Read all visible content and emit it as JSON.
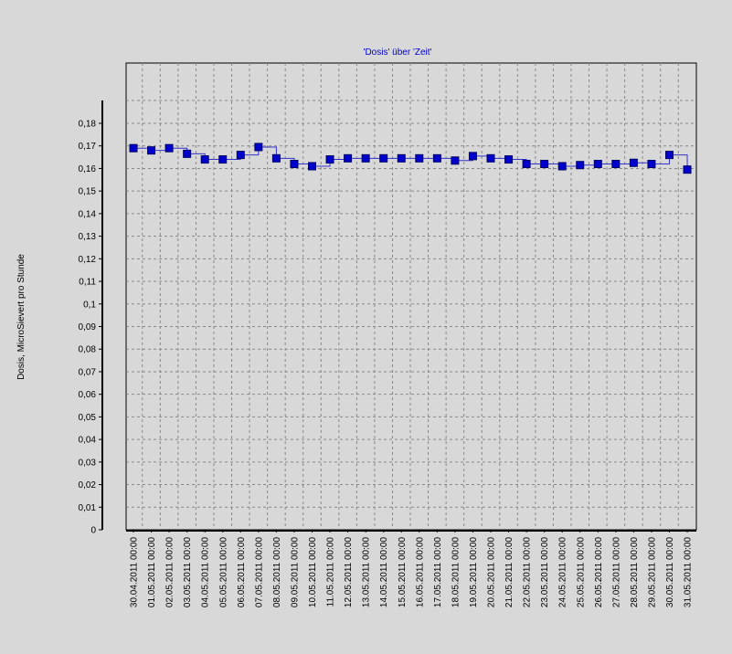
{
  "chart_data": {
    "type": "line",
    "title": "'Dosis' über 'Zeit'",
    "ylabel": "Dosis, MicroSievert pro Stunde",
    "xlabel": "",
    "ylim": [
      0,
      0.18
    ],
    "y_ticks": [
      0,
      0.01,
      0.02,
      0.03,
      0.04,
      0.05,
      0.06,
      0.07,
      0.08,
      0.09,
      0.1,
      0.11,
      0.12,
      0.13,
      0.14,
      0.15,
      0.16,
      0.17,
      0.18
    ],
    "y_tick_labels": [
      "0",
      "0,01",
      "0,02",
      "0,03",
      "0,04",
      "0,05",
      "0,06",
      "0,07",
      "0,08",
      "0,09",
      "0,1",
      "0,11",
      "0,12",
      "0,13",
      "0,14",
      "0,15",
      "0,16",
      "0,17",
      "0,18"
    ],
    "grid": true,
    "step_line": true,
    "categories": [
      "30.04.2011 00:00",
      "01.05.2011 00:00",
      "02.05.2011 00:00",
      "03.05.2011 00:00",
      "04.05.2011 00:00",
      "05.05.2011 00:00",
      "06.05.2011 00:00",
      "07.05.2011 00:00",
      "08.05.2011 00:00",
      "09.05.2011 00:00",
      "10.05.2011 00:00",
      "11.05.2011 00:00",
      "12.05.2011 00:00",
      "13.05.2011 00:00",
      "14.05.2011 00:00",
      "15.05.2011 00:00",
      "16.05.2011 00:00",
      "17.05.2011 00:00",
      "18.05.2011 00:00",
      "19.05.2011 00:00",
      "20.05.2011 00:00",
      "21.05.2011 00:00",
      "22.05.2011 00:00",
      "23.05.2011 00:00",
      "24.05.2011 00:00",
      "25.05.2011 00:00",
      "26.05.2011 00:00",
      "27.05.2011 00:00",
      "28.05.2011 00:00",
      "29.05.2011 00:00",
      "30.05.2011 00:00",
      "31.05.2011 00:00"
    ],
    "series": [
      {
        "values": [
          0.169,
          0.168,
          0.169,
          0.1665,
          0.164,
          0.164,
          0.166,
          0.1695,
          0.1645,
          0.162,
          0.161,
          0.164,
          0.1645,
          0.1645,
          0.1645,
          0.1645,
          0.1645,
          0.1645,
          0.1635,
          0.1655,
          0.1645,
          0.164,
          0.162,
          0.162,
          0.161,
          0.1615,
          0.162,
          0.162,
          0.1625,
          0.162,
          0.166,
          0.1595
        ],
        "color": "#0000cc"
      }
    ],
    "colors": {
      "background": "#d8d8d8",
      "plot_background": "#d8d8d8",
      "grid": "#888888",
      "line": "#3333cc",
      "marker": "#0000cc",
      "title": "#0000cc",
      "axis": "#000000"
    }
  }
}
